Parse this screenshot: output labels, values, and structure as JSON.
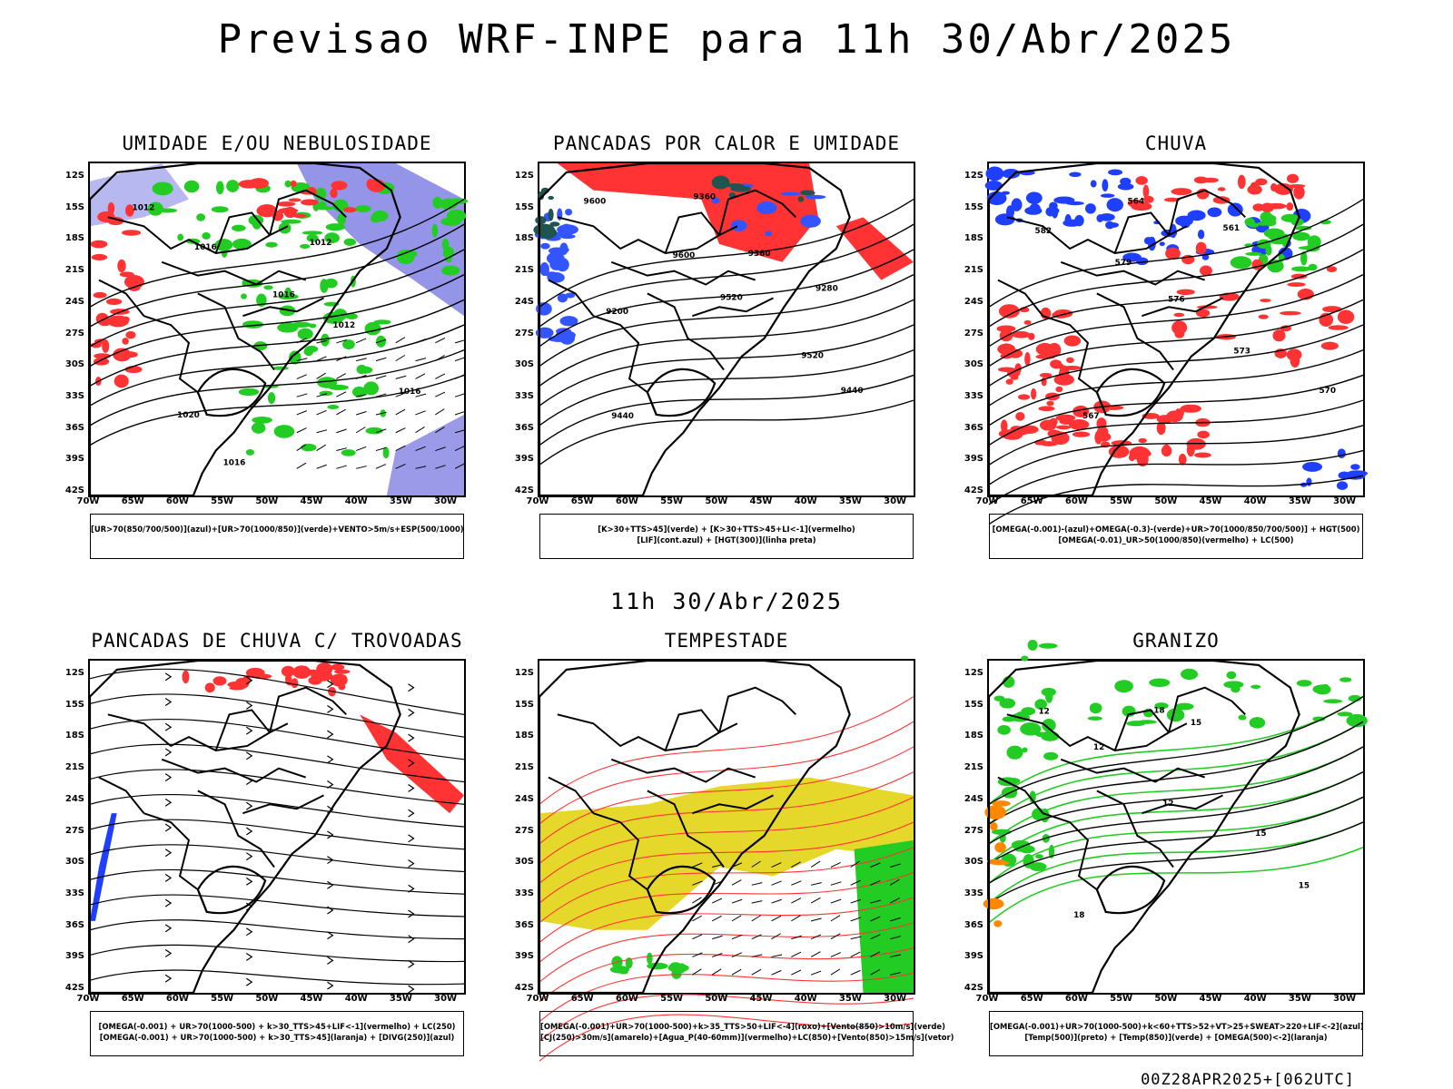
{
  "header": {
    "title": "Previsao WRF-INPE  para 11h 30/Abr/2025",
    "mid_title": "11h 30/Abr/2025",
    "footer": "00Z28APR2025+[062UTC]"
  },
  "axes": {
    "y": [
      "12S",
      "15S",
      "18S",
      "21S",
      "24S",
      "27S",
      "30S",
      "33S",
      "36S",
      "39S",
      "42S"
    ],
    "x": [
      "70W",
      "65W",
      "60W",
      "55W",
      "50W",
      "45W",
      "40W",
      "35W",
      "30W"
    ]
  },
  "panels": [
    {
      "title": "UMIDADE E/OU NEBULOSIDADE",
      "legend": [
        "[UR>70(850/700/500)](azul)+[UR>70(1000/850)](verde)+VENTO>5m/s+ESP(500/1000)"
      ],
      "contour_labels": [
        "1012",
        "1016",
        "1016",
        "1012",
        "1016",
        "1020",
        "1016",
        "1012"
      ],
      "colors": {
        "primary": "#7070e0",
        "secondary": "#22cc22",
        "tertiary": "#ff3333"
      }
    },
    {
      "title": "PANCADAS POR CALOR E UMIDADE",
      "legend": [
        "[K>30+TTS>45](verde) + [K>30+TTS>45+LI<-1](vermelho)",
        "[LIF](cont.azul) + [HGT(300)](linha preta)"
      ],
      "contour_labels": [
        "9600",
        "9600",
        "9520",
        "9520",
        "9440",
        "9440",
        "9360",
        "9360",
        "9280",
        "9200"
      ],
      "colors": {
        "primary": "#ff3333",
        "secondary": "#3355ff",
        "tertiary": "#1f5550"
      }
    },
    {
      "title": "CHUVA",
      "legend": [
        "[OMEGA(-0.001)-(azul)+OMEGA(-0.3)-(verde)+UR>70(1000/850/700/500)] + HGT(500)",
        "[OMEGA(-0.01)_UR>50(1000/850)(vermelho) + LC(500)"
      ],
      "contour_labels": [
        "582",
        "579",
        "576",
        "573",
        "570",
        "567",
        "564",
        "561"
      ],
      "colors": {
        "primary": "#ff3333",
        "secondary": "#1f3fff",
        "tertiary": "#22cc22"
      }
    },
    {
      "title": "PANCADAS DE CHUVA C/ TROVOADAS",
      "legend": [
        "[OMEGA(-0.001) + UR>70(1000-500) + k>30_TTS>45+LIF<-1](vermelho) + LC(250)",
        "[OMEGA(-0.001) + UR>70(1000-500) + k>30_TTS>45](laranja) + [DIVG(250)](azul)"
      ],
      "contour_labels": [],
      "colors": {
        "primary": "#ff3333",
        "secondary": "#1f3fff",
        "tertiary": "#ff8800"
      }
    },
    {
      "title": "TEMPESTADE",
      "legend": [
        "[OMEGA(-0.001)+UR>70(1000-500)+k>35_TTS>50+LIF<-4](roxo)+[Vento(850)>10m/s](verde)",
        "[CJ(250)>30m/s](amarelo)+[Agua_P(40-60mm)](vermelho)+LC(850)+[Vento(850)>15m/s](vetor)"
      ],
      "contour_labels": [],
      "colors": {
        "primary": "#e6d82a",
        "secondary": "#22cc22",
        "tertiary": "#ff3333"
      }
    },
    {
      "title": "GRANIZO",
      "legend": [
        "[OMEGA(-0.001)+UR>70(1000-500)+k<60+TTS>52+VT>25+SWEAT>220+LIF<-2](azul)",
        "[Temp(500)](preto) + [Temp(850)](verde) + [OMEGA(500)<-2](laranja)"
      ],
      "contour_labels": [
        "12",
        "12",
        "12",
        "15",
        "15",
        "18",
        "18",
        "15"
      ],
      "colors": {
        "primary": "#22cc22",
        "secondary": "#000000",
        "tertiary": "#ff8800"
      }
    }
  ]
}
